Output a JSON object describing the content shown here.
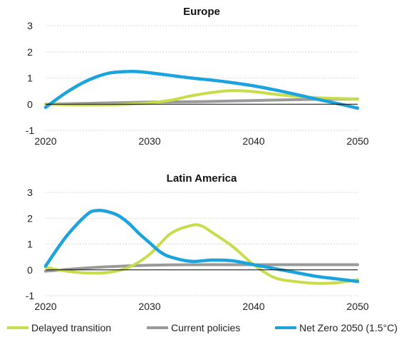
{
  "chart_data": [
    {
      "type": "line",
      "title": "Europe",
      "xlabel": "",
      "ylabel": "",
      "xlim": [
        2020,
        2050
      ],
      "ylim": [
        -1,
        3
      ],
      "x_ticks": [
        "2020",
        "2030",
        "2040",
        "2050"
      ],
      "y_ticks": [
        "3",
        "2",
        "1",
        "0",
        "-1"
      ],
      "grid": "horizontal dotted",
      "series": [
        {
          "name": "Delayed transition",
          "color": "#c9dd4a",
          "x": [
            2020,
            2022,
            2024,
            2026,
            2028,
            2030,
            2032,
            2034,
            2036,
            2038,
            2040,
            2042,
            2044,
            2046,
            2048,
            2050
          ],
          "values": [
            0.0,
            -0.02,
            -0.03,
            -0.02,
            0.0,
            0.05,
            0.15,
            0.32,
            0.45,
            0.52,
            0.48,
            0.38,
            0.3,
            0.25,
            0.22,
            0.2
          ]
        },
        {
          "name": "Current policies",
          "color": "#9a9a9a",
          "x": [
            2020,
            2025,
            2030,
            2035,
            2040,
            2045,
            2050
          ],
          "values": [
            0.0,
            0.04,
            0.08,
            0.1,
            0.14,
            0.18,
            0.2
          ]
        },
        {
          "name": "Net Zero 2050 (1.5°C)",
          "color": "#1aa3dc",
          "x": [
            2020,
            2022,
            2024,
            2026,
            2028,
            2029,
            2030,
            2032,
            2034,
            2036,
            2038,
            2040,
            2042,
            2044,
            2046,
            2048,
            2050
          ],
          "values": [
            -0.12,
            0.45,
            0.9,
            1.18,
            1.25,
            1.24,
            1.2,
            1.1,
            1.0,
            0.92,
            0.82,
            0.7,
            0.55,
            0.38,
            0.2,
            0.03,
            -0.15
          ]
        }
      ]
    },
    {
      "type": "line",
      "title": "Latin America",
      "xlabel": "",
      "ylabel": "",
      "xlim": [
        2020,
        2050
      ],
      "ylim": [
        -1,
        3
      ],
      "x_ticks": [
        "2020",
        "2030",
        "2040",
        "2050"
      ],
      "y_ticks": [
        "3",
        "2",
        "1",
        "0",
        "-1"
      ],
      "grid": "horizontal dotted",
      "series": [
        {
          "name": "Delayed transition",
          "color": "#c9dd4a",
          "x": [
            2020,
            2022,
            2024,
            2026,
            2028,
            2030,
            2032,
            2034,
            2035,
            2036,
            2038,
            2040,
            2042,
            2044,
            2046,
            2048,
            2050
          ],
          "values": [
            0.1,
            -0.05,
            -0.12,
            -0.1,
            0.1,
            0.6,
            1.4,
            1.72,
            1.7,
            1.45,
            0.9,
            0.2,
            -0.3,
            -0.45,
            -0.52,
            -0.5,
            -0.38
          ]
        },
        {
          "name": "Current policies",
          "color": "#9a9a9a",
          "x": [
            2020,
            2025,
            2030,
            2035,
            2040,
            2045,
            2050
          ],
          "values": [
            -0.05,
            0.1,
            0.18,
            0.2,
            0.2,
            0.2,
            0.2
          ]
        },
        {
          "name": "Net Zero 2050 (1.5°C)",
          "color": "#1aa3dc",
          "x": [
            2020,
            2022,
            2024,
            2025,
            2026,
            2027,
            2028,
            2029,
            2030,
            2031,
            2032,
            2034,
            2036,
            2038,
            2040,
            2042,
            2044,
            2046,
            2048,
            2050
          ],
          "values": [
            0.15,
            1.3,
            2.15,
            2.3,
            2.25,
            2.1,
            1.8,
            1.4,
            1.05,
            0.7,
            0.5,
            0.33,
            0.38,
            0.35,
            0.2,
            0.05,
            -0.1,
            -0.25,
            -0.35,
            -0.45
          ]
        }
      ]
    }
  ],
  "legend": {
    "position": "bottom",
    "items": [
      {
        "label": "Delayed transition",
        "color": "#c9dd4a"
      },
      {
        "label": "Current policies",
        "color": "#9a9a9a"
      },
      {
        "label": "Net Zero 2050 (1.5°C)",
        "color": "#1aa3dc"
      }
    ]
  }
}
